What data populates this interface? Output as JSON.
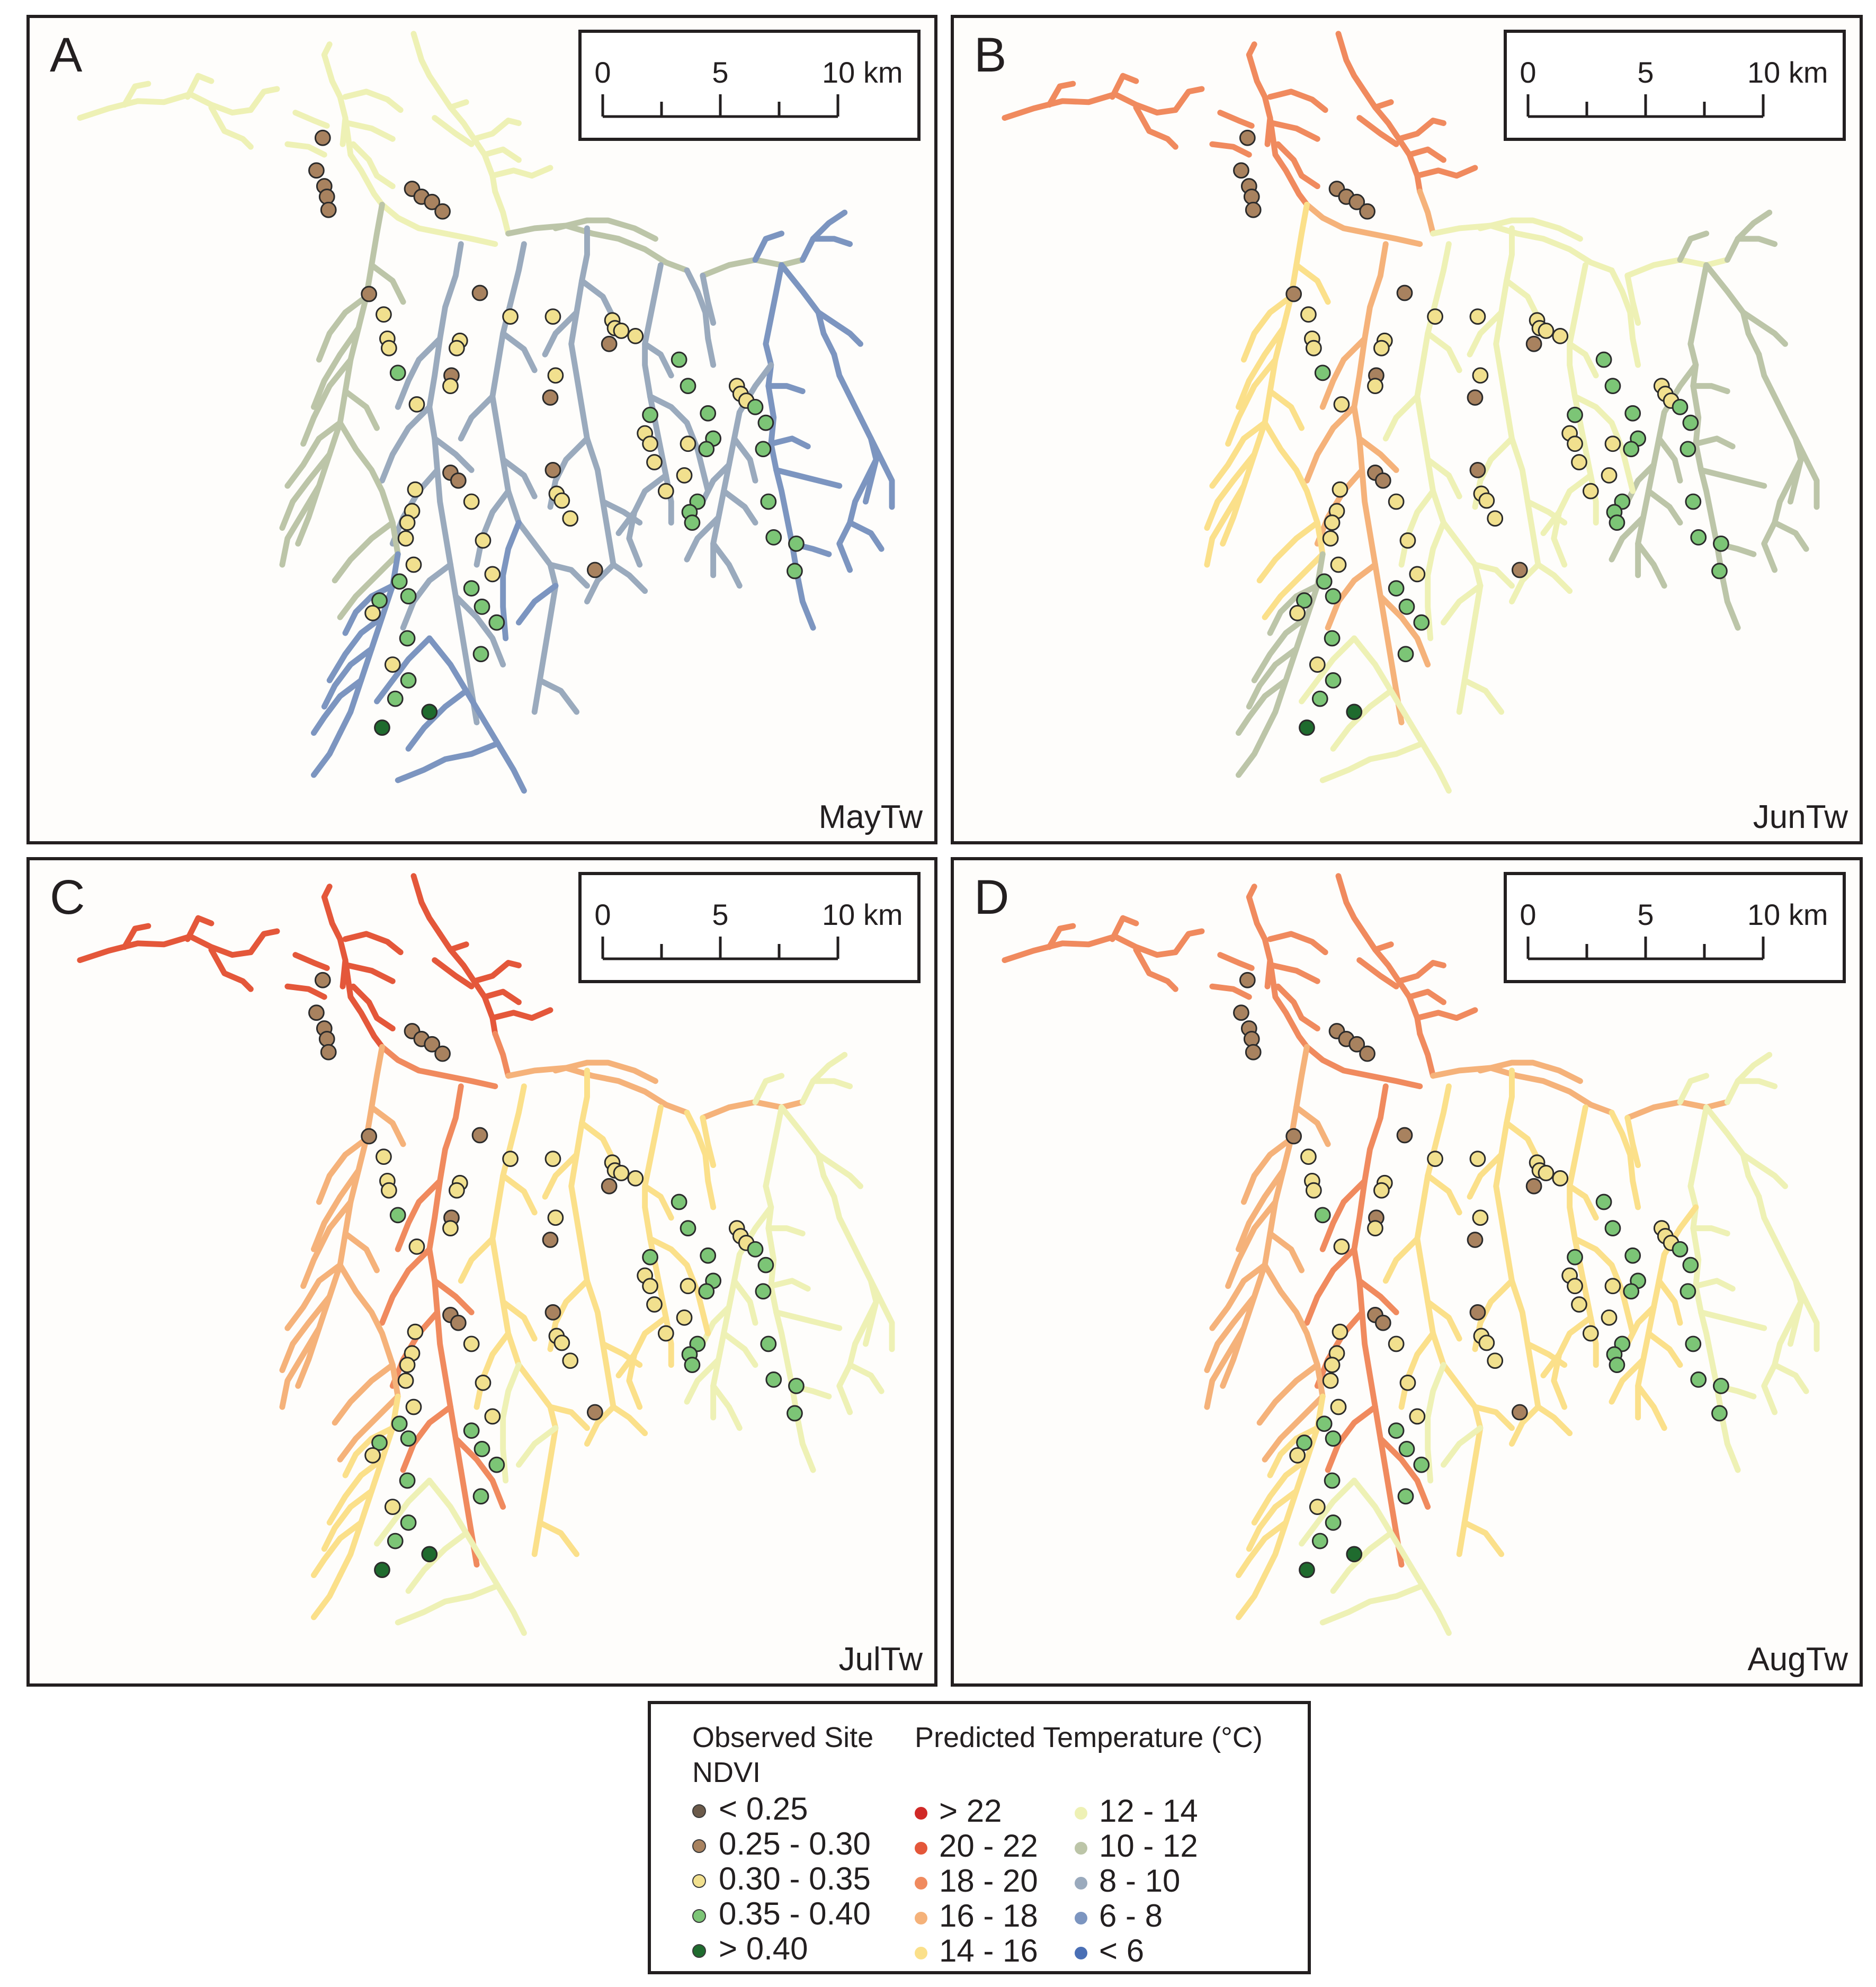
{
  "panels": [
    {
      "letter": "A",
      "label": "MayTw",
      "palette": "may"
    },
    {
      "letter": "B",
      "label": "JunTw",
      "palette": "jun"
    },
    {
      "letter": "C",
      "label": "JulTw",
      "palette": "jul"
    },
    {
      "letter": "D",
      "label": "AugTw",
      "palette": "aug"
    }
  ],
  "scalebar": {
    "ticks": [
      "0",
      "5",
      "10 km"
    ]
  },
  "legend": {
    "site_title_line1": "Observed Site",
    "site_title_line2": "NDVI",
    "temp_title": "Predicted Temperature (°C)",
    "ndvi_classes": [
      {
        "label": "< 0.25",
        "color": "#6b5a4a"
      },
      {
        "label": "0.25 - 0.30",
        "color": "#a8825f"
      },
      {
        "label": "0.30 - 0.35",
        "color": "#f1e08e"
      },
      {
        "label": "0.35 - 0.40",
        "color": "#7cc576"
      },
      {
        "label": "> 0.40",
        "color": "#1f6b2e"
      }
    ],
    "temp_classes_left": [
      {
        "label": "> 22",
        "color": "#d02927"
      },
      {
        "label": "20 - 22",
        "color": "#e4573a"
      },
      {
        "label": "18 - 20",
        "color": "#f08a5e"
      },
      {
        "label": "16 - 18",
        "color": "#f5b27a"
      },
      {
        "label": "14 - 16",
        "color": "#fbe08a"
      }
    ],
    "temp_classes_right": [
      {
        "label": "12 - 14",
        "color": "#eef1b5"
      },
      {
        "label": "10 - 12",
        "color": "#bcc5a8"
      },
      {
        "label": "8 - 10",
        "color": "#9aaabd"
      },
      {
        "label": "6 - 8",
        "color": "#7c95c0"
      },
      {
        "label": "< 6",
        "color": "#4a6fb5"
      }
    ]
  }
}
